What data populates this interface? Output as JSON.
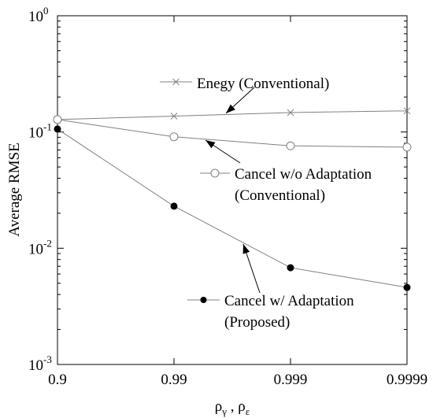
{
  "chart_data": {
    "type": "line",
    "title": "",
    "xlabel": "ρ",
    "xlabel_sub1": "γ",
    "xlabel_sep": " , ",
    "xlabel2": "ρ",
    "xlabel_sub2": "ε",
    "ylabel": "Average RMSE",
    "yscale": "log",
    "ylim": [
      0.001,
      1
    ],
    "x": [
      0.9,
      0.99,
      0.999,
      0.9999
    ],
    "x_tick_labels": [
      "0.9",
      "0.99",
      "0.999",
      "0.9999"
    ],
    "y_ticks": [
      {
        "base": "10",
        "exp": "0"
      },
      {
        "base": "10",
        "exp": "-1"
      },
      {
        "base": "10",
        "exp": "-2"
      },
      {
        "base": "10",
        "exp": "-3"
      }
    ],
    "grid": false,
    "series": [
      {
        "name": "Enegy (Conventional)",
        "name_lines": [
          "Enegy (Conventional)"
        ],
        "marker": "x",
        "color": "#808080",
        "values": [
          0.128,
          0.137,
          0.147,
          0.152
        ]
      },
      {
        "name": "Cancel w/o Adaptation (Conventional)",
        "name_lines": [
          "Cancel w/o Adaptation",
          "(Conventional)"
        ],
        "marker": "open-circle",
        "color": "#808080",
        "values": [
          0.128,
          0.091,
          0.076,
          0.074
        ]
      },
      {
        "name": "Cancel w/ Adaptation (Proposed)",
        "name_lines": [
          "Cancel w/ Adaptation",
          "(Proposed)"
        ],
        "marker": "filled-circle",
        "color": "#808080",
        "values": [
          0.106,
          0.023,
          0.0068,
          0.0046
        ]
      }
    ]
  }
}
